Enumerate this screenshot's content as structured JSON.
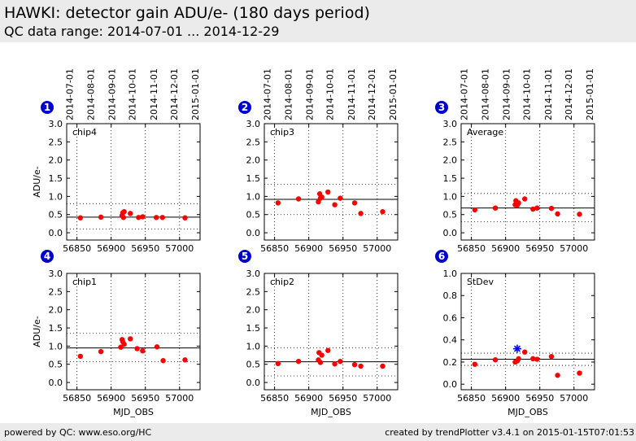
{
  "header": {
    "title": "HAWKI: detector gain ADU/e- (180 days period)",
    "subtitle": "QC data range: 2014-07-01 ... 2014-12-29"
  },
  "footer": {
    "left": "powered by QC: www.eso.org/HC",
    "right": "created by trendPlotter v3.4.1 on 2015-01-15T07:01:53"
  },
  "colors": {
    "data": "#ff0000",
    "highlight": "#0000ff",
    "badge": "#0000cc",
    "header_bg": "#ebebeb"
  },
  "chart_data": [
    {
      "type": "scatter",
      "badge": "1",
      "label": "chip4",
      "ylabel": "ADU/e-",
      "xlabel": "",
      "ylim": [
        -0.2,
        3.0
      ],
      "yticks": [
        "0.0",
        "0.5",
        "1.0",
        "1.5",
        "2.0",
        "2.5",
        "3.0"
      ],
      "ytick_values": [
        0,
        0.5,
        1,
        1.5,
        2,
        2.5,
        3
      ],
      "xlim": [
        56835,
        57030
      ],
      "xticks": [
        "56850",
        "56900",
        "56950",
        "57000"
      ],
      "xtick_values": [
        56850,
        56900,
        56950,
        57000
      ],
      "date_ticks": [
        "2014-07-01",
        "2014-08-01",
        "2014-09-01",
        "2014-10-01",
        "2014-11-01",
        "2014-12-01",
        "2015-01-01"
      ],
      "date_tick_values": [
        56839,
        56870,
        56901,
        56931,
        56962,
        56992,
        57023
      ],
      "mean": 0.43,
      "band": [
        0.1,
        0.8
      ],
      "points": [
        [
          56855,
          0.41
        ],
        [
          56885,
          0.43
        ],
        [
          56916,
          0.47
        ],
        [
          56917,
          0.55
        ],
        [
          56918,
          0.42
        ],
        [
          56919,
          0.58
        ],
        [
          56928,
          0.53
        ],
        [
          56940,
          0.42
        ],
        [
          56946,
          0.44
        ],
        [
          56966,
          0.42
        ],
        [
          56975,
          0.42
        ],
        [
          57008,
          0.41
        ]
      ]
    },
    {
      "type": "scatter",
      "badge": "2",
      "label": "chip3",
      "ylabel": "",
      "xlabel": "",
      "ylim": [
        -0.2,
        3.0
      ],
      "yticks": [
        "0.0",
        "0.5",
        "1.0",
        "1.5",
        "2.0",
        "2.5",
        "3.0"
      ],
      "ytick_values": [
        0,
        0.5,
        1,
        1.5,
        2,
        2.5,
        3
      ],
      "xlim": [
        56835,
        57030
      ],
      "xticks": [
        "56850",
        "56900",
        "56950",
        "57000"
      ],
      "xtick_values": [
        56850,
        56900,
        56950,
        57000
      ],
      "date_ticks": [
        "2014-07-01",
        "2014-08-01",
        "2014-09-01",
        "2014-10-01",
        "2014-11-01",
        "2014-12-01",
        "2015-01-01"
      ],
      "date_tick_values": [
        56839,
        56870,
        56901,
        56931,
        56962,
        56992,
        57023
      ],
      "mean": 0.92,
      "band": [
        0.5,
        1.33
      ],
      "points": [
        [
          56855,
          0.82
        ],
        [
          56885,
          0.93
        ],
        [
          56914,
          0.85
        ],
        [
          56916,
          1.07
        ],
        [
          56917,
          0.95
        ],
        [
          56919,
          0.98
        ],
        [
          56928,
          1.12
        ],
        [
          56938,
          0.77
        ],
        [
          56946,
          0.95
        ],
        [
          56967,
          0.82
        ],
        [
          56976,
          0.53
        ],
        [
          57008,
          0.58
        ]
      ]
    },
    {
      "type": "scatter",
      "badge": "3",
      "label": "Average",
      "ylabel": "",
      "xlabel": "",
      "ylim": [
        -0.2,
        3.0
      ],
      "yticks": [
        "0.0",
        "0.5",
        "1.0",
        "1.5",
        "2.0",
        "2.5",
        "3.0"
      ],
      "ytick_values": [
        0,
        0.5,
        1,
        1.5,
        2,
        2.5,
        3
      ],
      "xlim": [
        56835,
        57030
      ],
      "xticks": [
        "56850",
        "56900",
        "56950",
        "57000"
      ],
      "xtick_values": [
        56850,
        56900,
        56950,
        57000
      ],
      "date_ticks": [
        "2014-07-01",
        "2014-08-01",
        "2014-09-01",
        "2014-10-01",
        "2014-11-01",
        "2014-12-01",
        "2015-01-01"
      ],
      "date_tick_values": [
        56839,
        56870,
        56901,
        56931,
        56962,
        56992,
        57023
      ],
      "mean": 0.68,
      "band": [
        0.3,
        1.08
      ],
      "points": [
        [
          56855,
          0.63
        ],
        [
          56885,
          0.68
        ],
        [
          56914,
          0.77
        ],
        [
          56915,
          0.88
        ],
        [
          56917,
          0.76
        ],
        [
          56919,
          0.82
        ],
        [
          56928,
          0.93
        ],
        [
          56940,
          0.65
        ],
        [
          56946,
          0.68
        ],
        [
          56967,
          0.67
        ],
        [
          56976,
          0.52
        ],
        [
          57008,
          0.51
        ]
      ]
    },
    {
      "type": "scatter",
      "badge": "4",
      "label": "chip1",
      "ylabel": "ADU/e-",
      "xlabel": "MJD_OBS",
      "ylim": [
        -0.2,
        3.0
      ],
      "yticks": [
        "0.0",
        "0.5",
        "1.0",
        "1.5",
        "2.0",
        "2.5",
        "3.0"
      ],
      "ytick_values": [
        0,
        0.5,
        1,
        1.5,
        2,
        2.5,
        3
      ],
      "xlim": [
        56835,
        57030
      ],
      "xticks": [
        "56850",
        "56900",
        "56950",
        "57000"
      ],
      "xtick_values": [
        56850,
        56900,
        56950,
        57000
      ],
      "mean": 0.95,
      "band": [
        0.57,
        1.35
      ],
      "points": [
        [
          56855,
          0.72
        ],
        [
          56885,
          0.85
        ],
        [
          56914,
          0.97
        ],
        [
          56916,
          1.18
        ],
        [
          56917,
          1.12
        ],
        [
          56919,
          1.05
        ],
        [
          56928,
          1.2
        ],
        [
          56938,
          0.93
        ],
        [
          56946,
          0.87
        ],
        [
          56967,
          0.98
        ],
        [
          56976,
          0.6
        ],
        [
          57008,
          0.62
        ]
      ]
    },
    {
      "type": "scatter",
      "badge": "5",
      "label": "chip2",
      "ylabel": "",
      "xlabel": "MJD_OBS",
      "ylim": [
        -0.2,
        3.0
      ],
      "yticks": [
        "0.0",
        "0.5",
        "1.0",
        "1.5",
        "2.0",
        "2.5",
        "3.0"
      ],
      "ytick_values": [
        0,
        0.5,
        1,
        1.5,
        2,
        2.5,
        3
      ],
      "xlim": [
        56835,
        57030
      ],
      "xticks": [
        "56850",
        "56900",
        "56950",
        "57000"
      ],
      "xtick_values": [
        56850,
        56900,
        56950,
        57000
      ],
      "mean": 0.57,
      "band": [
        0.18,
        0.95
      ],
      "points": [
        [
          56855,
          0.52
        ],
        [
          56885,
          0.58
        ],
        [
          56914,
          0.62
        ],
        [
          56915,
          0.82
        ],
        [
          56917,
          0.55
        ],
        [
          56919,
          0.75
        ],
        [
          56928,
          0.88
        ],
        [
          56938,
          0.51
        ],
        [
          56946,
          0.58
        ],
        [
          56967,
          0.49
        ],
        [
          56976,
          0.45
        ],
        [
          57008,
          0.45
        ]
      ]
    },
    {
      "type": "scatter",
      "badge": "6",
      "label": "StDev",
      "ylabel": "",
      "xlabel": "MJD_OBS",
      "ylim": [
        -0.05,
        1.0
      ],
      "yticks": [
        "0.0",
        "0.2",
        "0.4",
        "0.6",
        "0.8",
        "1.0"
      ],
      "ytick_values": [
        0,
        0.2,
        0.4,
        0.6,
        0.8,
        1.0
      ],
      "xlim": [
        56835,
        57030
      ],
      "xticks": [
        "56850",
        "56900",
        "56950",
        "57000"
      ],
      "xtick_values": [
        56850,
        56900,
        56950,
        57000
      ],
      "mean": 0.225,
      "band": [
        0.17,
        0.28
      ],
      "points": [
        [
          56855,
          0.18
        ],
        [
          56885,
          0.22
        ],
        [
          56914,
          0.2
        ],
        [
          56917,
          0.21
        ],
        [
          56919,
          0.23
        ],
        [
          56928,
          0.29
        ],
        [
          56940,
          0.23
        ],
        [
          56946,
          0.225
        ],
        [
          56967,
          0.25
        ],
        [
          56976,
          0.08
        ],
        [
          57008,
          0.1
        ]
      ],
      "highlight_points": [
        [
          56917,
          0.32
        ]
      ]
    }
  ]
}
